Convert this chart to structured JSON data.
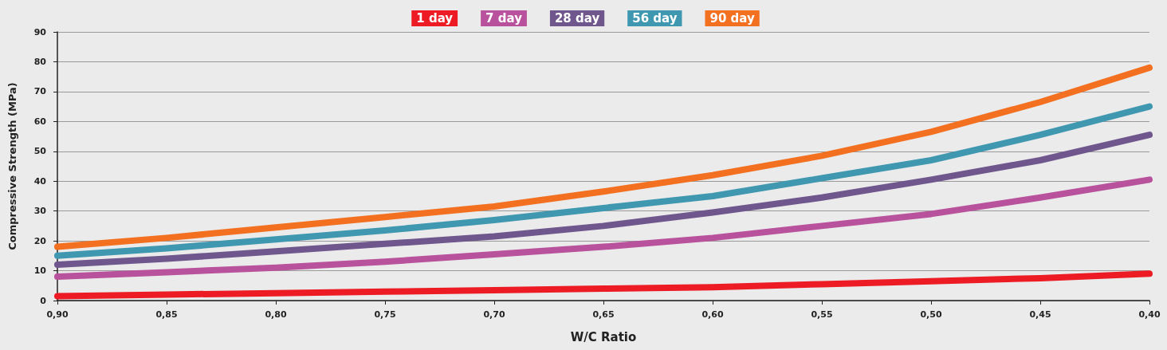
{
  "chart_data": {
    "type": "line",
    "xlabel": "W/C Ratio",
    "ylabel": "Compressive Strength (MPa)",
    "x": [
      0.9,
      0.85,
      0.8,
      0.75,
      0.7,
      0.65,
      0.6,
      0.55,
      0.5,
      0.45,
      0.4
    ],
    "series": [
      {
        "name": "1 day",
        "color": "#ed1c24",
        "values": [
          1.5,
          2,
          2.5,
          3,
          3.5,
          4,
          4.5,
          5.5,
          6.5,
          7.5,
          9
        ]
      },
      {
        "name": "7 day",
        "color": "#b9529c",
        "values": [
          8,
          9.5,
          11,
          13,
          15.5,
          18,
          21,
          25,
          29,
          34.5,
          40.5
        ]
      },
      {
        "name": "28 day",
        "color": "#6f568d",
        "values": [
          12,
          14,
          16.5,
          19,
          21.5,
          25,
          29.5,
          34.5,
          40.5,
          47,
          55.5
        ]
      },
      {
        "name": "56 day",
        "color": "#3f98b0",
        "values": [
          15,
          17.5,
          20.5,
          23.5,
          27,
          31,
          35,
          41,
          47,
          55.5,
          65
        ]
      },
      {
        "name": "90 day",
        "color": "#f37021",
        "values": [
          18,
          21,
          24.5,
          28,
          31.5,
          36.5,
          42,
          48.5,
          56.5,
          66.5,
          78
        ]
      }
    ],
    "xlim": [
      0.9,
      0.4
    ],
    "xticks": [
      {
        "value": 0.9,
        "label": "0,90"
      },
      {
        "value": 0.85,
        "label": "0,85"
      },
      {
        "value": 0.8,
        "label": "0,80"
      },
      {
        "value": 0.75,
        "label": "0,75"
      },
      {
        "value": 0.7,
        "label": "0,70"
      },
      {
        "value": 0.65,
        "label": "0,65"
      },
      {
        "value": 0.6,
        "label": "0,60"
      },
      {
        "value": 0.55,
        "label": "0,55"
      },
      {
        "value": 0.5,
        "label": "0,50"
      },
      {
        "value": 0.45,
        "label": "0,45"
      },
      {
        "value": 0.4,
        "label": "0,40"
      }
    ],
    "ylim": [
      0,
      90
    ],
    "yticks": [
      0,
      10,
      20,
      30,
      40,
      50,
      60,
      70,
      80,
      90
    ],
    "grid": "y",
    "legend": "top",
    "line_style": "solid"
  }
}
